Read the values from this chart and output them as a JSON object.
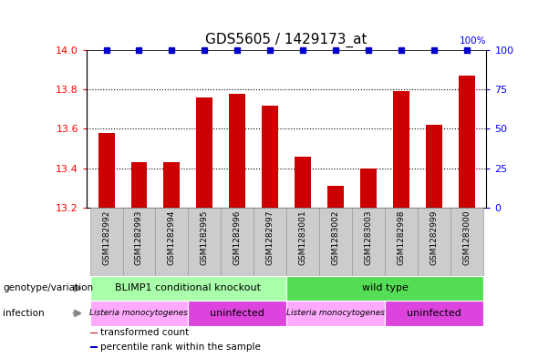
{
  "title": "GDS5605 / 1429173_at",
  "samples": [
    "GSM1282992",
    "GSM1282993",
    "GSM1282994",
    "GSM1282995",
    "GSM1282996",
    "GSM1282997",
    "GSM1283001",
    "GSM1283002",
    "GSM1283003",
    "GSM1282998",
    "GSM1282999",
    "GSM1283000"
  ],
  "transformed_counts": [
    13.58,
    13.43,
    13.43,
    13.76,
    13.78,
    13.72,
    13.46,
    13.31,
    13.4,
    13.79,
    13.62,
    13.87
  ],
  "percentile_ranks": [
    100,
    100,
    100,
    100,
    100,
    100,
    100,
    100,
    100,
    100,
    100,
    100
  ],
  "ylim_left": [
    13.2,
    14.0
  ],
  "ylim_right": [
    0,
    100
  ],
  "yticks_left": [
    13.2,
    13.4,
    13.6,
    13.8,
    14.0
  ],
  "yticks_right": [
    0,
    25,
    50,
    75,
    100
  ],
  "bar_color": "#cc0000",
  "dot_color": "#0000cc",
  "genotype_groups": [
    {
      "label": "BLIMP1 conditional knockout",
      "start": 0,
      "end": 6,
      "color": "#aaffaa"
    },
    {
      "label": "wild type",
      "start": 6,
      "end": 12,
      "color": "#55dd55"
    }
  ],
  "infection_groups": [
    {
      "label": "Listeria monocytogenes",
      "start": 0,
      "end": 3,
      "color": "#ffaaff"
    },
    {
      "label": "uninfected",
      "start": 3,
      "end": 6,
      "color": "#dd44dd"
    },
    {
      "label": "Listeria monocytogenes",
      "start": 6,
      "end": 9,
      "color": "#ffaaff"
    },
    {
      "label": "uninfected",
      "start": 9,
      "end": 12,
      "color": "#dd44dd"
    }
  ],
  "row_labels": [
    "genotype/variation",
    "infection"
  ],
  "legend_items": [
    {
      "label": "transformed count",
      "color": "#cc0000"
    },
    {
      "label": "percentile rank within the sample",
      "color": "#0000cc"
    }
  ],
  "dotted_gridlines": [
    13.4,
    13.6,
    13.8
  ],
  "bar_width": 0.5,
  "sample_bg_color": "#cccccc",
  "sample_border_color": "#999999"
}
